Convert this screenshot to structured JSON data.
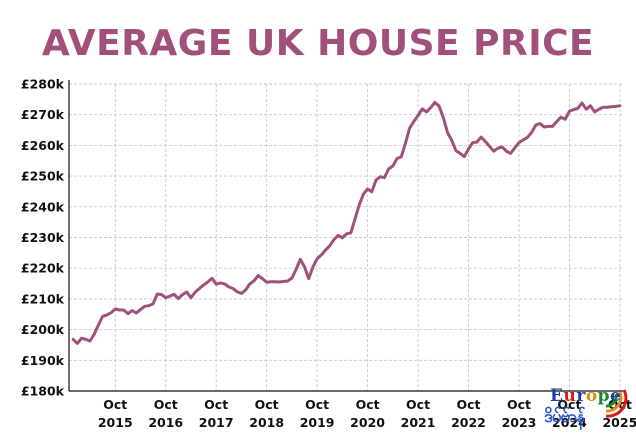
{
  "chart_data": {
    "type": "line",
    "title": "AVERAGE UK HOUSE PRICE",
    "xlabel": "",
    "ylabel": "",
    "ylim": [
      180000,
      280000
    ],
    "y_ticks": [
      {
        "value": 280000,
        "label": "£280k"
      },
      {
        "value": 270000,
        "label": "£270k"
      },
      {
        "value": 260000,
        "label": "£260k"
      },
      {
        "value": 250000,
        "label": "£250k"
      },
      {
        "value": 240000,
        "label": "£240k"
      },
      {
        "value": 230000,
        "label": "£230k"
      },
      {
        "value": 220000,
        "label": "£220k"
      },
      {
        "value": 210000,
        "label": "£210k"
      },
      {
        "value": 200000,
        "label": "£200k"
      },
      {
        "value": 190000,
        "label": "£190k"
      },
      {
        "value": 180000,
        "label": "£180k"
      }
    ],
    "x_ticks": [
      {
        "date": "2015-10",
        "month": "Oct",
        "year": "2015"
      },
      {
        "date": "2016-10",
        "month": "Oct",
        "year": "2016"
      },
      {
        "date": "2017-10",
        "month": "Oct",
        "year": "2017"
      },
      {
        "date": "2018-10",
        "month": "Oct",
        "year": "2018"
      },
      {
        "date": "2019-10",
        "month": "Oct",
        "year": "2019"
      },
      {
        "date": "2020-10",
        "month": "Oct",
        "year": "2020"
      },
      {
        "date": "2021-10",
        "month": "Oct",
        "year": "2021"
      },
      {
        "date": "2022-10",
        "month": "Oct",
        "year": "2022"
      },
      {
        "date": "2023-10",
        "month": "Oct",
        "year": "2023"
      },
      {
        "date": "2024-10",
        "month": "Oct",
        "year": "2024"
      },
      {
        "date": "2025-10",
        "month": "Oct",
        "year": "2025"
      }
    ],
    "grid": true,
    "line_color": "#a0507a",
    "series": [
      {
        "name": "",
        "x": [
          "2014-12",
          "2015-01",
          "2015-02",
          "2015-03",
          "2015-04",
          "2015-05",
          "2015-06",
          "2015-07",
          "2015-08",
          "2015-09",
          "2015-10",
          "2015-11",
          "2015-12",
          "2016-01",
          "2016-02",
          "2016-03",
          "2016-04",
          "2016-05",
          "2016-06",
          "2016-07",
          "2016-08",
          "2016-09",
          "2016-10",
          "2016-11",
          "2016-12",
          "2017-01",
          "2017-02",
          "2017-03",
          "2017-04",
          "2017-05",
          "2017-06",
          "2017-07",
          "2017-08",
          "2017-09",
          "2017-10",
          "2017-11",
          "2017-12",
          "2018-01",
          "2018-02",
          "2018-03",
          "2018-04",
          "2018-05",
          "2018-06",
          "2018-07",
          "2018-08",
          "2018-09",
          "2018-10",
          "2018-11",
          "2018-12",
          "2019-01",
          "2019-02",
          "2019-03",
          "2019-04",
          "2019-05",
          "2019-06",
          "2019-07",
          "2019-08",
          "2019-09",
          "2019-10",
          "2019-11",
          "2019-12",
          "2020-01",
          "2020-02",
          "2020-03",
          "2020-04",
          "2020-05",
          "2020-06",
          "2020-07",
          "2020-08",
          "2020-09",
          "2020-10",
          "2020-11",
          "2020-12",
          "2021-01",
          "2021-02",
          "2021-03",
          "2021-04",
          "2021-05",
          "2021-06",
          "2021-07",
          "2021-08",
          "2021-09",
          "2021-10",
          "2021-11",
          "2021-12",
          "2022-01",
          "2022-02",
          "2022-03",
          "2022-04",
          "2022-05",
          "2022-06",
          "2022-07",
          "2022-08",
          "2022-09",
          "2022-10",
          "2022-11",
          "2022-12",
          "2023-01",
          "2023-02",
          "2023-03",
          "2023-04",
          "2023-05",
          "2023-06",
          "2023-07",
          "2023-08",
          "2023-09",
          "2023-10",
          "2023-11",
          "2023-12",
          "2024-01",
          "2024-02",
          "2024-03",
          "2024-04",
          "2024-05",
          "2024-06",
          "2024-07",
          "2024-08",
          "2024-09",
          "2024-10",
          "2024-11",
          "2024-12",
          "2025-01",
          "2025-02",
          "2025-03",
          "2025-04",
          "2025-05",
          "2025-06",
          "2025-07",
          "2025-08",
          "2025-09",
          "2025-10"
        ],
        "values": [
          196800,
          195500,
          197200,
          196800,
          196300,
          198500,
          201500,
          204300,
          204800,
          205500,
          206700,
          206400,
          206400,
          205200,
          206200,
          205400,
          206500,
          207600,
          207800,
          208400,
          211600,
          211400,
          210400,
          210900,
          211500,
          210100,
          211400,
          212200,
          210400,
          212200,
          213400,
          214500,
          215500,
          216700,
          214800,
          215200,
          214900,
          213900,
          213400,
          212300,
          211800,
          212900,
          214900,
          215900,
          217600,
          216600,
          215400,
          215600,
          215600,
          215500,
          215700,
          215800,
          216800,
          219600,
          222900,
          220500,
          216600,
          220400,
          223100,
          224300,
          225900,
          227300,
          229300,
          230700,
          229900,
          231200,
          231500,
          236000,
          240600,
          244100,
          245800,
          244900,
          248700,
          249800,
          249500,
          252300,
          253300,
          255700,
          256300,
          260700,
          265600,
          267800,
          269700,
          271900,
          270900,
          272300,
          274000,
          272800,
          269100,
          264200,
          261700,
          258300,
          257400,
          256400,
          258800,
          260900,
          261100,
          262700,
          261300,
          259700,
          258100,
          259100,
          259500,
          258100,
          257400,
          259200,
          260900,
          261800,
          262600,
          264200,
          266600,
          267100,
          266000,
          266200,
          266200,
          267800,
          269200,
          268500,
          271100,
          271700,
          272100,
          273800,
          271800,
          272900,
          270900,
          271800,
          272400,
          272400,
          272600,
          272700,
          272900
        ]
      }
    ]
  },
  "watermark": {
    "word_letters": [
      "E",
      "u",
      "r",
      "o",
      "p",
      "e"
    ],
    "script_text": "ဒိပ်ဗ်ာန်"
  }
}
